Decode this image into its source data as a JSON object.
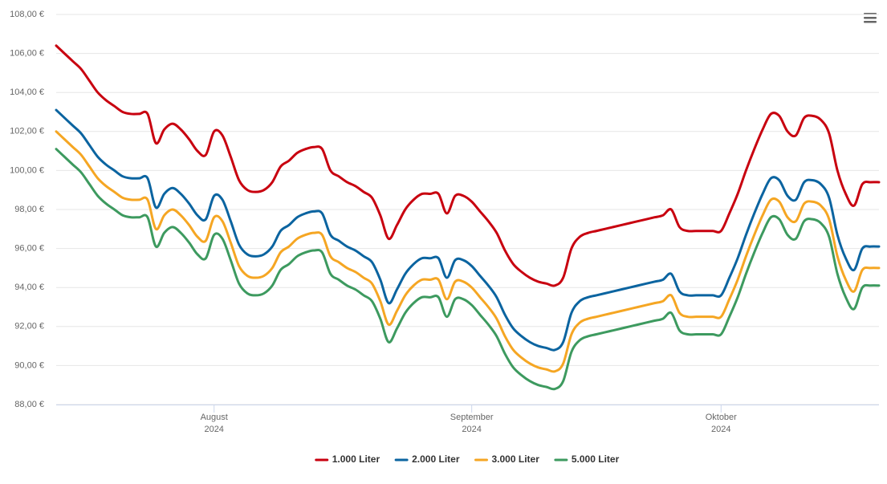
{
  "chart_data": {
    "type": "line",
    "categories": [
      null,
      null,
      null,
      null,
      null,
      null,
      null,
      null,
      null,
      null,
      null,
      null,
      null,
      null,
      null,
      null,
      null,
      null,
      null,
      "August\n2024",
      null,
      null,
      null,
      null,
      null,
      null,
      null,
      null,
      null,
      null,
      null,
      null,
      null,
      null,
      null,
      null,
      null,
      null,
      null,
      null,
      null,
      null,
      null,
      null,
      null,
      null,
      null,
      null,
      null,
      null,
      "September\n2024",
      null,
      null,
      null,
      null,
      null,
      null,
      null,
      null,
      null,
      null,
      null,
      null,
      null,
      null,
      null,
      null,
      null,
      null,
      null,
      null,
      null,
      null,
      null,
      null,
      null,
      null,
      null,
      null,
      null,
      "Oktober\n2024",
      null,
      null,
      null,
      null,
      null,
      null,
      null,
      null,
      null,
      null,
      null,
      null,
      null,
      null,
      null,
      null,
      null,
      null,
      null
    ],
    "series": [
      {
        "name": "1.000 Liter",
        "color": "#c8000f",
        "values": [
          106.4,
          106.0,
          105.6,
          105.2,
          104.6,
          104.0,
          103.6,
          103.3,
          103.0,
          102.9,
          102.9,
          102.9,
          101.4,
          102.1,
          102.4,
          102.1,
          101.6,
          101.0,
          100.8,
          102.0,
          101.8,
          100.7,
          99.5,
          99.0,
          98.9,
          99.0,
          99.4,
          100.2,
          100.5,
          100.9,
          101.1,
          101.2,
          101.1,
          100.0,
          99.7,
          99.4,
          99.2,
          98.9,
          98.6,
          97.7,
          96.5,
          97.2,
          98.0,
          98.5,
          98.8,
          98.8,
          98.8,
          97.8,
          98.7,
          98.7,
          98.4,
          97.9,
          97.4,
          96.8,
          95.9,
          95.2,
          94.8,
          94.5,
          94.3,
          94.2,
          94.1,
          94.5,
          96.0,
          96.6,
          96.8,
          96.9,
          97.0,
          97.1,
          97.2,
          97.3,
          97.4,
          97.5,
          97.6,
          97.7,
          98.0,
          97.1,
          96.9,
          96.9,
          96.9,
          96.9,
          96.9,
          97.8,
          98.8,
          100.0,
          101.1,
          102.1,
          102.9,
          102.8,
          102.0,
          101.8,
          102.7,
          102.8,
          102.6,
          101.9,
          100.0,
          98.8,
          98.2,
          99.3,
          99.4,
          99.4
        ]
      },
      {
        "name": "2.000 Liter",
        "color": "#0b64a0",
        "values": [
          103.1,
          102.7,
          102.3,
          101.9,
          101.3,
          100.7,
          100.3,
          100.0,
          99.7,
          99.6,
          99.6,
          99.6,
          98.1,
          98.8,
          99.1,
          98.8,
          98.3,
          97.7,
          97.5,
          98.7,
          98.5,
          97.4,
          96.2,
          95.7,
          95.6,
          95.7,
          96.1,
          96.9,
          97.2,
          97.6,
          97.8,
          97.9,
          97.8,
          96.7,
          96.4,
          96.1,
          95.9,
          95.6,
          95.3,
          94.4,
          93.2,
          93.9,
          94.7,
          95.2,
          95.5,
          95.5,
          95.5,
          94.5,
          95.4,
          95.4,
          95.1,
          94.6,
          94.1,
          93.5,
          92.6,
          91.9,
          91.5,
          91.2,
          91.0,
          90.9,
          90.8,
          91.2,
          92.7,
          93.3,
          93.5,
          93.6,
          93.7,
          93.8,
          93.9,
          94.0,
          94.1,
          94.2,
          94.3,
          94.4,
          94.7,
          93.8,
          93.6,
          93.6,
          93.6,
          93.6,
          93.6,
          94.5,
          95.5,
          96.7,
          97.8,
          98.8,
          99.6,
          99.5,
          98.7,
          98.5,
          99.4,
          99.5,
          99.3,
          98.6,
          96.7,
          95.5,
          94.9,
          96.0,
          96.1,
          96.1
        ]
      },
      {
        "name": "3.000 Liter",
        "color": "#f5a623",
        "values": [
          102.0,
          101.6,
          101.2,
          100.8,
          100.2,
          99.6,
          99.2,
          98.9,
          98.6,
          98.5,
          98.5,
          98.5,
          97.0,
          97.7,
          98.0,
          97.7,
          97.2,
          96.6,
          96.4,
          97.6,
          97.4,
          96.3,
          95.1,
          94.6,
          94.5,
          94.6,
          95.0,
          95.8,
          96.1,
          96.5,
          96.7,
          96.8,
          96.7,
          95.6,
          95.3,
          95.0,
          94.8,
          94.5,
          94.2,
          93.3,
          92.1,
          92.8,
          93.6,
          94.1,
          94.4,
          94.4,
          94.4,
          93.4,
          94.3,
          94.3,
          94.0,
          93.5,
          93.0,
          92.4,
          91.5,
          90.8,
          90.4,
          90.1,
          89.9,
          89.8,
          89.7,
          90.1,
          91.6,
          92.2,
          92.4,
          92.5,
          92.6,
          92.7,
          92.8,
          92.9,
          93.0,
          93.1,
          93.2,
          93.3,
          93.6,
          92.7,
          92.5,
          92.5,
          92.5,
          92.5,
          92.5,
          93.4,
          94.4,
          95.6,
          96.7,
          97.7,
          98.5,
          98.4,
          97.6,
          97.4,
          98.3,
          98.4,
          98.2,
          97.5,
          95.6,
          94.4,
          93.8,
          94.9,
          95.0,
          95.0
        ]
      },
      {
        "name": "5.000 Liter",
        "color": "#3d9a5f",
        "values": [
          101.1,
          100.7,
          100.3,
          99.9,
          99.3,
          98.7,
          98.3,
          98.0,
          97.7,
          97.6,
          97.6,
          97.6,
          96.1,
          96.8,
          97.1,
          96.8,
          96.3,
          95.7,
          95.5,
          96.7,
          96.5,
          95.4,
          94.2,
          93.7,
          93.6,
          93.7,
          94.1,
          94.9,
          95.2,
          95.6,
          95.8,
          95.9,
          95.8,
          94.7,
          94.4,
          94.1,
          93.9,
          93.6,
          93.3,
          92.4,
          91.2,
          91.9,
          92.7,
          93.2,
          93.5,
          93.5,
          93.5,
          92.5,
          93.4,
          93.4,
          93.1,
          92.6,
          92.1,
          91.5,
          90.6,
          89.9,
          89.5,
          89.2,
          89.0,
          88.9,
          88.8,
          89.2,
          90.7,
          91.3,
          91.5,
          91.6,
          91.7,
          91.8,
          91.9,
          92.0,
          92.1,
          92.2,
          92.3,
          92.4,
          92.7,
          91.8,
          91.6,
          91.6,
          91.6,
          91.6,
          91.6,
          92.5,
          93.5,
          94.7,
          95.8,
          96.8,
          97.6,
          97.5,
          96.7,
          96.5,
          97.4,
          97.5,
          97.3,
          96.6,
          94.7,
          93.5,
          92.9,
          94.0,
          94.1,
          94.1
        ]
      }
    ],
    "ylim": [
      88,
      108
    ],
    "yticks": [
      {
        "value": 88,
        "label": "88,00 €"
      },
      {
        "value": 90,
        "label": "90,00 €"
      },
      {
        "value": 92,
        "label": "92,00 €"
      },
      {
        "value": 94,
        "label": "94,00 €"
      },
      {
        "value": 96,
        "label": "96,00 €"
      },
      {
        "value": 98,
        "label": "98,00 €"
      },
      {
        "value": 100,
        "label": "100,00 €"
      },
      {
        "value": 102,
        "label": "102,00 €"
      },
      {
        "value": 104,
        "label": "104,00 €"
      },
      {
        "value": 106,
        "label": "106,00 €"
      },
      {
        "value": 108,
        "label": "108,00 €"
      }
    ],
    "grid": true,
    "legend": "bottom"
  }
}
